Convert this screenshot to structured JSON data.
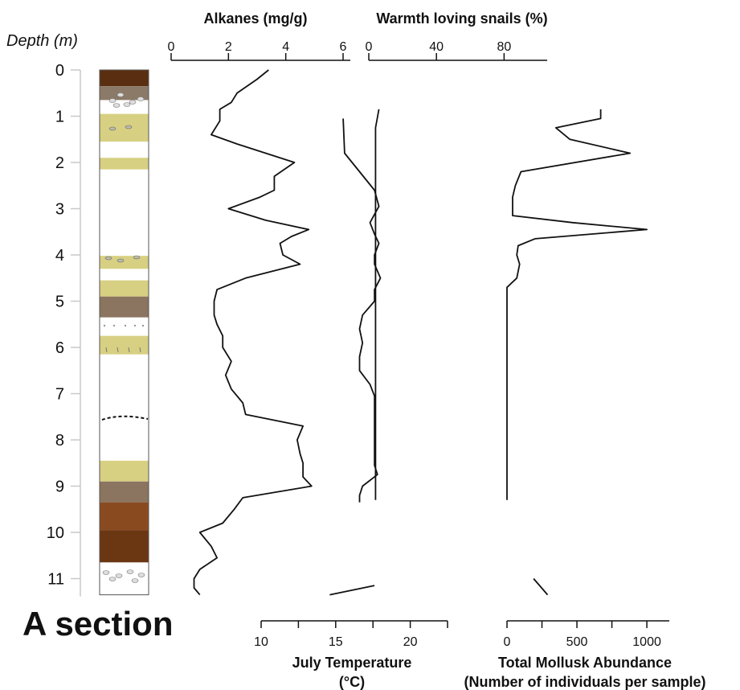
{
  "figure": {
    "depth_label": "Depth (m)",
    "section_label": "A section"
  },
  "chart_data": {
    "type": "line",
    "depth_axis": {
      "label": "Depth (m)",
      "ticks": [
        0,
        1,
        2,
        3,
        4,
        5,
        6,
        7,
        8,
        9,
        10,
        11
      ],
      "range": [
        0,
        11.35
      ]
    },
    "stratigraphy": [
      {
        "top": 0.0,
        "bottom": 0.35,
        "color": "#5a2e10",
        "name": "dark-brown-layer"
      },
      {
        "top": 0.35,
        "bottom": 0.65,
        "color": "#8b7a68",
        "name": "gravel-layer"
      },
      {
        "top": 0.95,
        "bottom": 1.55,
        "color": "#d7d082",
        "name": "yellow-clay-layer"
      },
      {
        "top": 1.9,
        "bottom": 2.15,
        "color": "#d7d082",
        "name": "yellow-clay-layer"
      },
      {
        "top": 4.02,
        "bottom": 4.3,
        "color": "#d7d082",
        "name": "yellow-clay-layer"
      },
      {
        "top": 4.55,
        "bottom": 4.9,
        "color": "#d7d082",
        "name": "yellow-clay-layer"
      },
      {
        "top": 4.9,
        "bottom": 5.35,
        "color": "#8b7560",
        "name": "brown-silt-layer"
      },
      {
        "top": 5.75,
        "bottom": 6.15,
        "color": "#d7d082",
        "name": "yellow-clay-layer"
      },
      {
        "top": 8.45,
        "bottom": 8.9,
        "color": "#d7d082",
        "name": "yellow-clay-layer"
      },
      {
        "top": 8.9,
        "bottom": 9.35,
        "color": "#8b7560",
        "name": "brown-silt-layer"
      },
      {
        "top": 9.35,
        "bottom": 9.95,
        "color": "#8a4a20",
        "name": "reddish-brown-layer"
      },
      {
        "top": 9.95,
        "bottom": 10.65,
        "color": "#6b3612",
        "name": "dark-brown-layer"
      },
      {
        "top": 10.65,
        "bottom": 10.95,
        "color": "#ffffff",
        "name": "gravel-layer"
      }
    ],
    "panels": [
      {
        "id": "alkanes",
        "title": "Alkanes (mg/g)",
        "axis_position": "top",
        "xlim": [
          0,
          6
        ],
        "ticks": [
          0,
          2,
          4,
          6
        ],
        "tick_labels": [
          "0",
          "2",
          "4",
          "6"
        ],
        "series": [
          {
            "depth": [
              0.0,
              0.2,
              0.5,
              0.7,
              0.85,
              1.1,
              1.4,
              1.6,
              1.8,
              2.0,
              2.3,
              2.6,
              2.75,
              3.0,
              3.25,
              3.45,
              3.6,
              3.75,
              4.0,
              4.2,
              4.5,
              4.75,
              5.0,
              5.3,
              5.5,
              5.75,
              6.0,
              6.3,
              6.6,
              6.9,
              7.2,
              7.45,
              7.7,
              8.0,
              8.3,
              8.5,
              8.8,
              9.0,
              9.25,
              9.5,
              9.8,
              10.0,
              10.3,
              10.55,
              10.8,
              11.0,
              11.2,
              11.35
            ],
            "values": [
              3.4,
              3.0,
              2.3,
              2.1,
              1.7,
              1.7,
              1.4,
              2.3,
              3.3,
              4.3,
              3.6,
              3.6,
              3.1,
              2.0,
              3.3,
              4.8,
              4.2,
              3.8,
              3.9,
              4.5,
              2.6,
              1.6,
              1.5,
              1.5,
              1.6,
              1.8,
              1.8,
              2.1,
              1.9,
              2.1,
              2.5,
              2.6,
              4.6,
              4.4,
              4.5,
              4.6,
              4.6,
              4.9,
              2.5,
              2.2,
              1.8,
              1.0,
              1.4,
              1.6,
              1.0,
              0.8,
              0.8,
              1.0
            ]
          }
        ]
      },
      {
        "id": "warmth-snails",
        "title": "Warmth loving snails (%)",
        "axis_position": "top",
        "xlim": [
          0,
          105
        ],
        "ticks": [
          0,
          40,
          80
        ],
        "tick_labels": [
          "0",
          "40",
          "80"
        ],
        "series": [
          {
            "depth": [
              0.85,
              1.05,
              1.25,
              1.5,
              1.8,
              2.2,
              2.5,
              2.75,
              3.0,
              3.15,
              3.3,
              3.45,
              3.65,
              3.8,
              4.0,
              4.2,
              4.5,
              4.7,
              4.9,
              5.1,
              5.3,
              5.6,
              5.9,
              6.2,
              6.5,
              6.8,
              7.05,
              7.3,
              7.6,
              7.9,
              8.2,
              8.5,
              8.7,
              8.9,
              9.05,
              9.2,
              9.3
            ],
            "values": [
              6,
              5,
              4,
              4,
              4,
              4,
              4,
              4,
              4,
              4,
              4,
              4,
              4,
              4,
              4,
              4,
              4,
              4,
              4,
              4,
              4,
              4,
              4,
              4,
              4,
              4,
              4,
              4,
              4,
              4,
              4,
              4,
              4,
              4,
              4,
              4,
              4
            ]
          }
        ]
      },
      {
        "id": "july-temperature",
        "title": "July Temperature (°C)",
        "axis_position": "bottom",
        "xlim": [
          10,
          22.5
        ],
        "ticks": [
          10,
          12.5,
          15,
          17.5,
          20,
          22.5
        ],
        "tick_labels": [
          "10",
          "",
          "15",
          "",
          "20",
          ""
        ],
        "series": [
          {
            "depth": [
              1.05,
              1.8,
              2.2,
              2.6,
              2.95,
              3.3,
              3.55,
              3.75,
              4.0,
              4.2,
              4.5,
              4.75,
              5.0,
              5.3,
              5.6,
              5.9,
              6.2,
              6.5,
              6.8,
              7.05,
              7.3,
              7.6,
              7.9,
              8.1,
              8.3,
              8.55,
              8.75,
              9.0,
              9.2,
              9.35
            ],
            "values": [
              15.5,
              15.6,
              16.6,
              17.6,
              17.9,
              17.3,
              17.6,
              17.9,
              17.6,
              17.6,
              18.0,
              17.6,
              17.6,
              16.8,
              16.6,
              16.8,
              16.6,
              16.6,
              17.3,
              17.6,
              17.6,
              17.6,
              17.6,
              17.6,
              17.6,
              17.6,
              17.8,
              16.8,
              16.6,
              16.6
            ]
          },
          {
            "depth": [
              11.15,
              11.35
            ],
            "values": [
              17.6,
              14.6
            ]
          }
        ]
      },
      {
        "id": "mollusk-abundance",
        "title": "Total Mollusk Abundance (Number of individuals per sample)",
        "axis_position": "bottom",
        "xlim": [
          0,
          1080
        ],
        "ticks": [
          0,
          250,
          500,
          750,
          1000
        ],
        "tick_labels": [
          "0",
          "",
          "500",
          "",
          "1000"
        ],
        "series": [
          {
            "depth": [
              0.85,
              1.05,
              1.25,
              1.5,
              1.8,
              2.2,
              2.5,
              2.75,
              3.0,
              3.15,
              3.3,
              3.45,
              3.65,
              3.8,
              4.0,
              4.2,
              4.5,
              4.7,
              4.9,
              5.1,
              5.3,
              5.6,
              5.9,
              6.2,
              6.5,
              6.8,
              7.05,
              7.3,
              7.6,
              7.9,
              8.2,
              8.5,
              8.7,
              8.9,
              9.05,
              9.2,
              9.3
            ],
            "values": [
              670,
              670,
              350,
              450,
              880,
              100,
              60,
              40,
              40,
              40,
              470,
              1000,
              200,
              80,
              70,
              90,
              70,
              0,
              0,
              0,
              0,
              0,
              0,
              0,
              0,
              0,
              0,
              0,
              0,
              0,
              0,
              0,
              0,
              0,
              0,
              0,
              0
            ]
          },
          {
            "depth": [
              11.0,
              11.35
            ],
            "values": [
              190,
              290
            ]
          }
        ]
      }
    ]
  }
}
